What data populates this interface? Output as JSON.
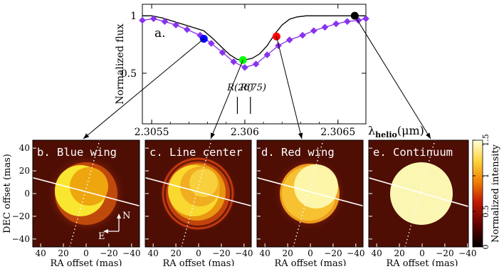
{
  "spectrum": {
    "panel_label": "a.",
    "ylabel": "Normalized flux",
    "xlabel_lambda": "λ",
    "xlabel_sub": "helio",
    "xlabel_unit": "(μm)",
    "xlim": [
      2.30545,
      2.30665
    ],
    "ylim": [
      0.06,
      1.1
    ],
    "yticks": [
      "0.5",
      "1"
    ],
    "ytick_values": [
      0.5,
      1.0
    ],
    "xticks": [
      "2.3055",
      "2.306",
      "2.3065"
    ],
    "xtick_values": [
      2.3055,
      2.306,
      2.3065
    ],
    "line_markers": [
      {
        "label": "R(26)",
        "x": 2.30596
      },
      {
        "label": "R(75)",
        "x": 2.30603
      }
    ]
  },
  "chart_data": [
    {
      "type": "line",
      "title": "",
      "xlabel": "λhelio(μm)",
      "ylabel": "Normalized flux",
      "xlim": [
        2.30545,
        2.30665
      ],
      "ylim": [
        0.06,
        1.1
      ],
      "series": [
        {
          "name": "",
          "color": "#000000",
          "x": [
            2.30545,
            2.3055,
            2.30553,
            2.30556,
            2.30578,
            2.30583,
            2.30588,
            2.30592,
            2.30596,
            2.306,
            2.30604,
            2.30608,
            2.30612,
            2.30616,
            2.3062,
            2.30624,
            2.30628,
            2.30633,
            2.30665
          ],
          "y": [
            1.0,
            1.0,
            0.99,
            0.98,
            0.87,
            0.8,
            0.72,
            0.66,
            0.62,
            0.615,
            0.63,
            0.67,
            0.74,
            0.84,
            0.92,
            0.97,
            0.99,
            1.0,
            1.0
          ]
        },
        {
          "name": "",
          "color": "#8833ee",
          "x": [
            2.30545,
            2.30551,
            2.30557,
            2.30563,
            2.30569,
            2.30576,
            2.30582,
            2.30588,
            2.30594,
            2.306,
            2.30606,
            2.30612,
            2.30618,
            2.30624,
            2.30631,
            2.30637,
            2.30643,
            2.30649,
            2.30655,
            2.30661,
            2.30665
          ],
          "y": [
            0.96,
            0.975,
            0.95,
            0.92,
            0.88,
            0.83,
            0.76,
            0.68,
            0.6,
            0.55,
            0.58,
            0.66,
            0.74,
            0.79,
            0.83,
            0.87,
            0.9,
            0.93,
            0.95,
            0.96,
            0.975
          ]
        }
      ],
      "highlighted_points": [
        {
          "name": "Blue wing",
          "x": 2.30578,
          "y": 0.8,
          "color": "#0000ff"
        },
        {
          "name": "Line center",
          "x": 2.30599,
          "y": 0.615,
          "color": "#00ff00"
        },
        {
          "name": "Red wing",
          "x": 2.30617,
          "y": 0.82,
          "color": "#ff0000"
        },
        {
          "name": "Continuum",
          "x": 2.30659,
          "y": 1.0,
          "color": "#000000"
        }
      ]
    },
    {
      "type": "heatmap",
      "title": "",
      "xlabel": "RA offset (mas)",
      "ylabel": "DEC offset (mas)",
      "xlim": [
        45,
        -45
      ],
      "ylim": [
        -47,
        47
      ],
      "xticks": [
        "40",
        "20",
        "0",
        "−20",
        "−40"
      ],
      "xtick_values": [
        40,
        20,
        0,
        -20,
        -40
      ],
      "yticks": [
        "−40",
        "−20",
        "0",
        "20",
        "40"
      ],
      "ytick_values": [
        -40,
        -20,
        0,
        20,
        40
      ],
      "colorbar": {
        "label": "Normalized intensity",
        "range": [
          0,
          1.5
        ],
        "ticks": [
          "0",
          "0.5",
          "1",
          "1.5"
        ],
        "tick_values": [
          0,
          0.5,
          1,
          1.5
        ]
      },
      "panels": [
        {
          "label": "b. Blue wing",
          "compass": {
            "north": "N",
            "east": "E"
          }
        },
        {
          "label": "c. Line center"
        },
        {
          "label": "d. Red wing"
        },
        {
          "label": "e. Continuum"
        }
      ]
    }
  ]
}
